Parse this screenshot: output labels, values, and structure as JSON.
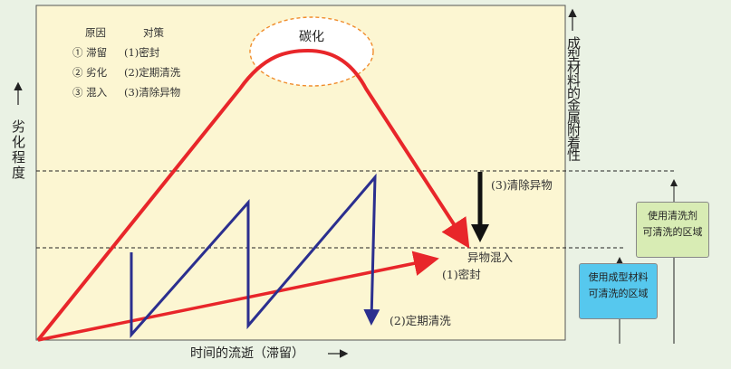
{
  "diagram": {
    "y_axis_left_label": "劣化程度",
    "y_axis_right_label": "成型材料的金属附着性",
    "x_axis_label": "时间的流逝（滞留）",
    "cloud_label": "碳化",
    "legend": {
      "header_cause": "原因",
      "header_measure": "对策",
      "rows": [
        {
          "cause": "① 滞留",
          "measure": "(1)密封"
        },
        {
          "cause": "② 劣化",
          "measure": "(2)定期清洗"
        },
        {
          "cause": "③ 混入",
          "measure": "(3)清除异物"
        }
      ]
    },
    "annotations": {
      "clean_foreign": "(3)清除异物",
      "foreign_mixing": "异物混入",
      "seal": "(1)密封",
      "periodic_clean": "(2)定期清洗"
    },
    "boxes": {
      "cleanable_by_agent": [
        "使用清洗剂",
        "可清洗的区域"
      ],
      "cleanable_by_material": [
        "使用成型材料",
        "可清洗的区域"
      ]
    },
    "colors": {
      "panel": "#fcf6d2",
      "red": "#e8262a",
      "blue": "#2b2f8f",
      "cloud_border": "#f08c2c",
      "box_green": "#d8ecb4",
      "box_blue": "#56c8ee"
    }
  }
}
